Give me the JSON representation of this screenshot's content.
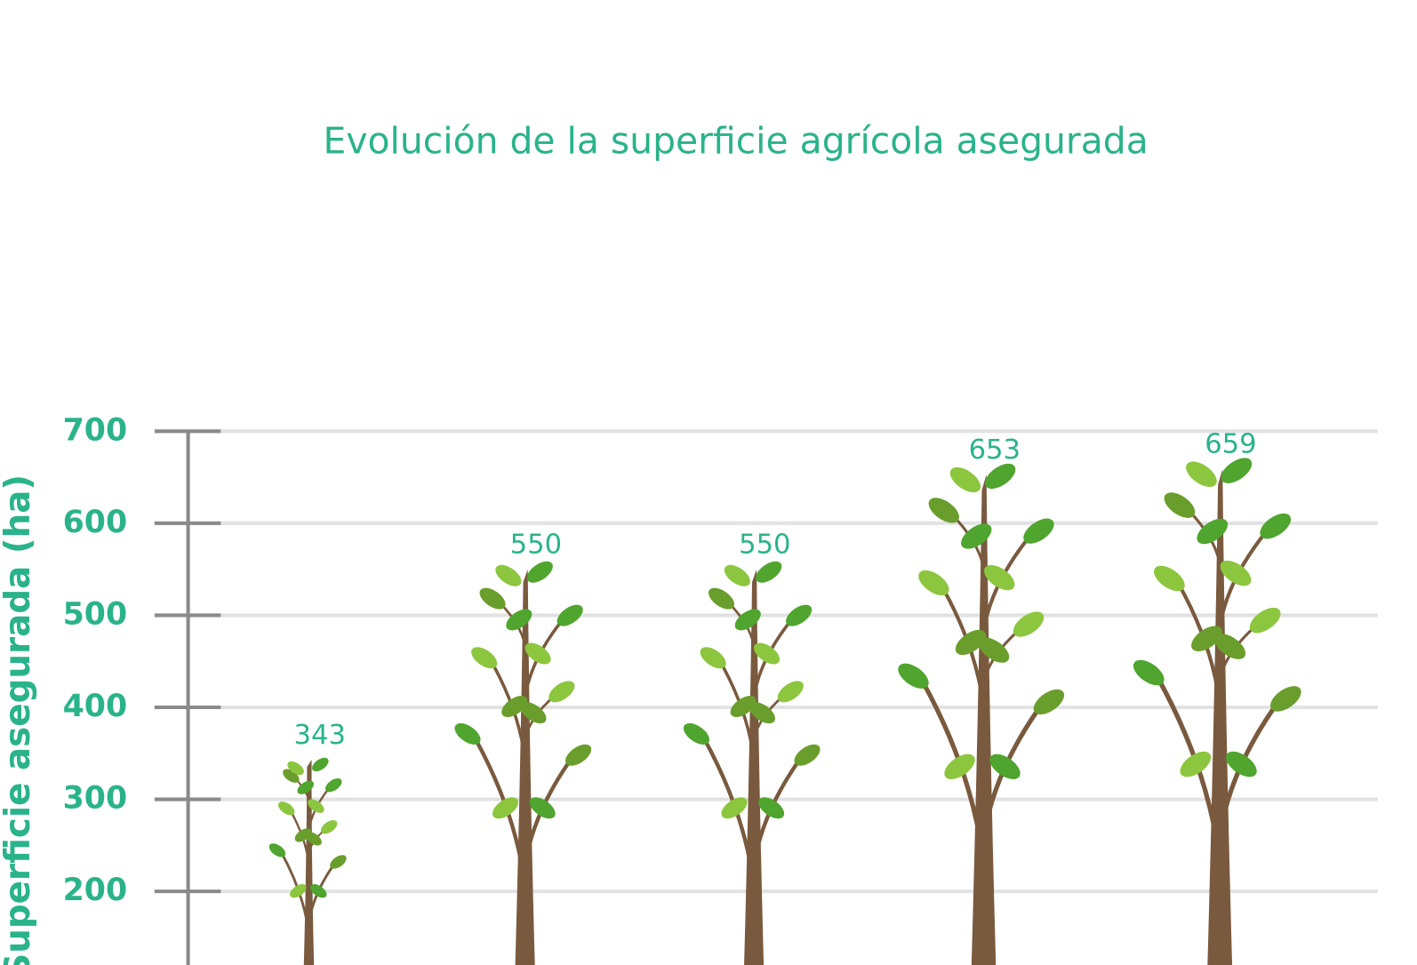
{
  "chart_data": {
    "type": "pictograph",
    "title": "Evolución de la superficie agrícola asegurada",
    "y_label": "Superficie asegurada (ha)",
    "values": [
      343,
      550,
      550,
      653,
      659
    ],
    "ylim": [
      120,
      700
    ],
    "yticks": [
      200,
      300,
      400,
      500,
      600,
      700
    ],
    "grid": true,
    "color": "#7a5a3e",
    "text_color": "#2ab38a"
  }
}
